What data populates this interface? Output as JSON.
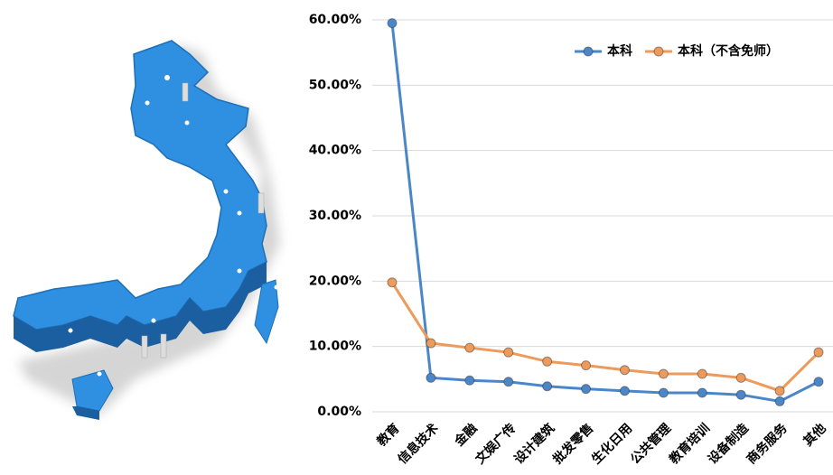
{
  "chart_data": {
    "type": "line",
    "categories": [
      "教育",
      "信息技术",
      "金融",
      "文娱广传",
      "设计建筑",
      "批发零售",
      "生化日用",
      "公共管理",
      "教育培训",
      "设备制造",
      "商务服务",
      "其他"
    ],
    "series": [
      {
        "name": "本科",
        "color": "#4a86c8",
        "values": [
          59.5,
          5.2,
          4.8,
          4.6,
          3.9,
          3.5,
          3.2,
          2.9,
          2.9,
          2.6,
          1.6,
          4.6
        ]
      },
      {
        "name": "本科（不含免师）",
        "color": "#ee9a5a",
        "values": [
          19.8,
          10.5,
          9.8,
          9.1,
          7.7,
          7.1,
          6.4,
          5.8,
          5.8,
          5.2,
          3.2,
          9.1
        ]
      }
    ],
    "ylim": [
      0,
      60
    ],
    "yticks": [
      {
        "value": 0,
        "label": "0.00%"
      },
      {
        "value": 10,
        "label": "10.00%"
      },
      {
        "value": 20,
        "label": "20.00%"
      },
      {
        "value": 30,
        "label": "30.00%"
      },
      {
        "value": 40,
        "label": "40.00%"
      },
      {
        "value": 50,
        "label": "50.00%"
      },
      {
        "value": 60,
        "label": "60.00%"
      }
    ],
    "grid": true,
    "legend": "top-right"
  }
}
